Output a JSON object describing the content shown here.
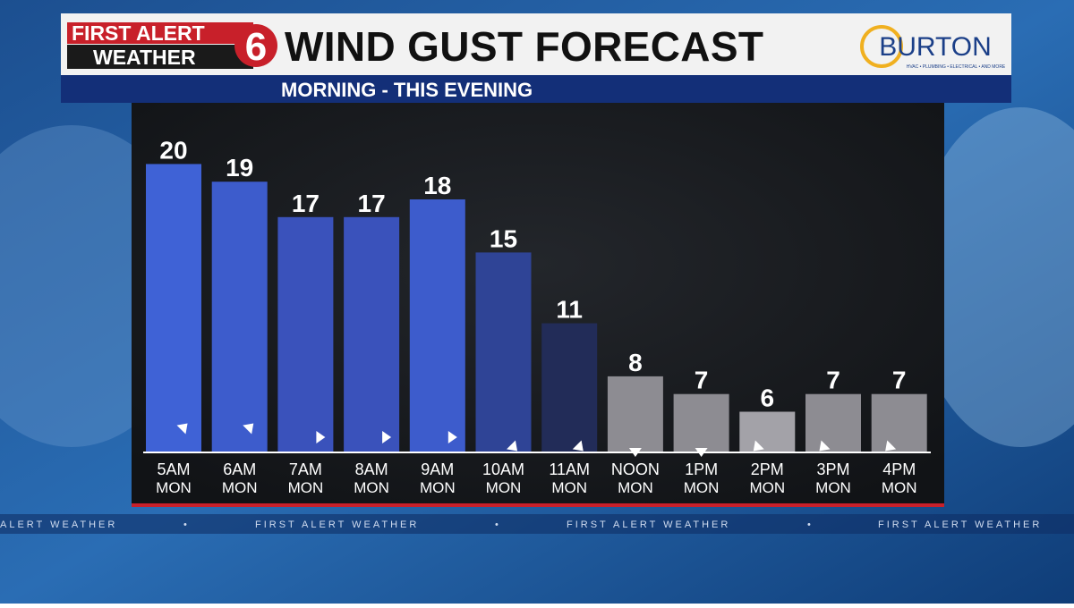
{
  "header": {
    "logo_top": "FIRST ALERT",
    "logo_bottom": "WEATHER",
    "logo_number": "6",
    "sponsor": "BURTON",
    "sponsor_tagline": "HVAC • PLUMBING • ELECTRICAL • AND MORE"
  },
  "ticker": {
    "left_fragment": "ALERT WEATHER",
    "text": "FIRST ALERT WEATHER",
    "separator": "•"
  },
  "chart_data": {
    "type": "bar",
    "title": "WIND GUST FORECAST",
    "subtitle": "MORNING - THIS EVENING",
    "categories": [
      "5AM",
      "6AM",
      "7AM",
      "8AM",
      "9AM",
      "10AM",
      "11AM",
      "NOON",
      "1PM",
      "2PM",
      "3PM",
      "4PM"
    ],
    "category_days": [
      "MON",
      "MON",
      "MON",
      "MON",
      "MON",
      "MON",
      "MON",
      "MON",
      "MON",
      "MON",
      "MON",
      "MON"
    ],
    "values": [
      20,
      19,
      17,
      17,
      18,
      15,
      11,
      8,
      7,
      6,
      7,
      7
    ],
    "colors": [
      "#3f62d6",
      "#3d5ccc",
      "#3a52bb",
      "#3a52bb",
      "#3d5ccc",
      "#2f4496",
      "#222c58",
      "#8d8c92",
      "#8d8c92",
      "#a3a2a8",
      "#8d8c92",
      "#8d8c92"
    ],
    "arrow_angles": [
      -45,
      -45,
      0,
      0,
      0,
      45,
      45,
      90,
      90,
      135,
      135,
      135
    ],
    "ylim": [
      3.7,
      22.7
    ]
  }
}
